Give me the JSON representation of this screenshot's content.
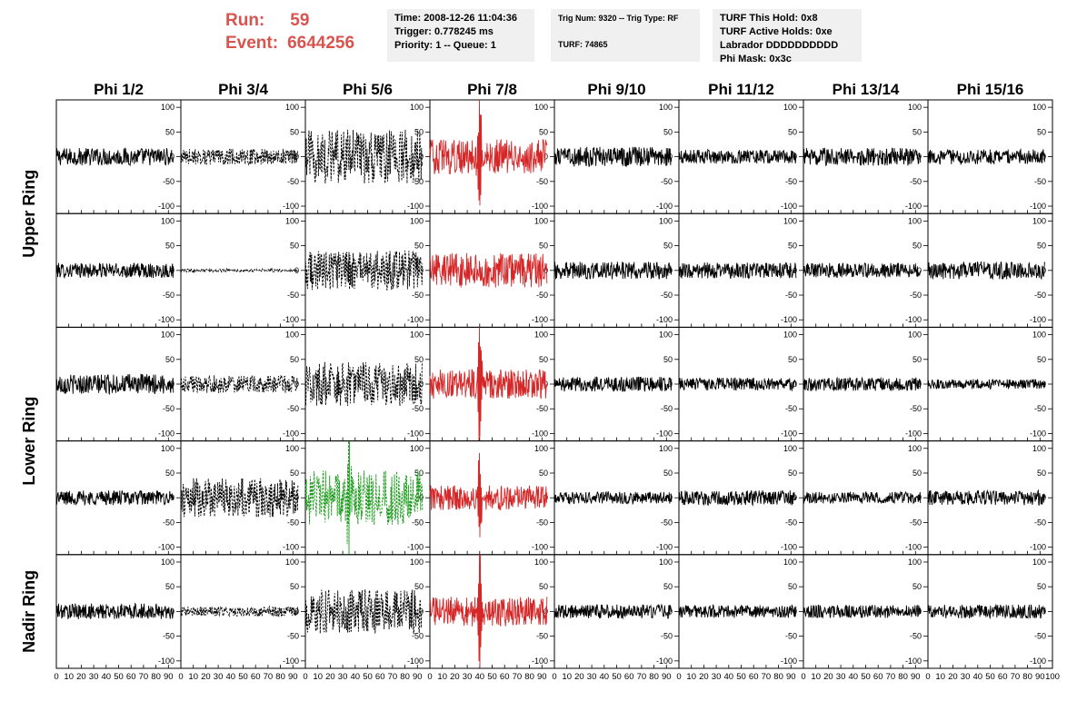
{
  "header": {
    "run_label": "Run:",
    "run_value": "59",
    "event_label": "Event:",
    "event_value": "6644256",
    "time_line": "Time: 2008-12-26 11:04:36",
    "trigger_line": "Trigger: 0.778245 ms",
    "priority_line": "Priority: 1 -- Queue: 1",
    "trig_line": "Trig Num: 9320 -- Trig Type: RF",
    "turf_line": "TURF: 74865",
    "turf_hold_line": "TURF This Hold: 0x8",
    "turf_active_line": "TURF Active Holds: 0xe",
    "labrador_line": "Labrador DDDDDDDDDD",
    "phimask_line": "Phi Mask: 0x3c"
  },
  "colors": {
    "default": "#000000",
    "triggered": "#d62728",
    "highlight": "#1a9a1a",
    "title_red": "#d9534f",
    "info_bg": "#f0f0f0"
  },
  "chart_data": {
    "type": "line",
    "columns": [
      "Phi 1/2",
      "Phi 3/4",
      "Phi 5/6",
      "Phi 7/8",
      "Phi 9/10",
      "Phi 11/12",
      "Phi 13/14",
      "Phi 15/16"
    ],
    "rows": [
      "Upper Ring",
      "Upper Ring",
      "Lower Ring",
      "Lower Ring",
      "Nadir Ring"
    ],
    "row_labels": [
      {
        "label": "Upper Ring",
        "rows": [
          0,
          1
        ]
      },
      {
        "label": "Lower Ring",
        "rows": [
          2,
          3
        ]
      },
      {
        "label": "Nadir Ring",
        "rows": [
          4
        ]
      }
    ],
    "xlim": [
      0,
      100
    ],
    "ylim": [
      -115,
      115
    ],
    "x_ticks": [
      0,
      10,
      20,
      30,
      40,
      50,
      60,
      70,
      80,
      90,
      100
    ],
    "x_tick_labels": [
      "0",
      "10",
      "20",
      "30",
      "40",
      "50",
      "60",
      "70",
      "80",
      "90",
      "100"
    ],
    "x_tick_labels_per_panel": [
      "0",
      "10",
      "20",
      "30",
      "40",
      "50",
      "60",
      "70",
      "80",
      "90"
    ],
    "y_ticks": [
      -100,
      -50,
      0,
      50,
      100
    ],
    "y_tick_labels": [
      "-100",
      "-50",
      "0",
      "50",
      "100"
    ],
    "waveform_x_range": [
      0,
      94
    ],
    "styles": {
      "black": {
        "color": "#000000",
        "dashed": false
      },
      "dashed": {
        "color": "#000000",
        "dashed": true
      },
      "red": {
        "color": "#d62728",
        "dashed": false
      },
      "green": {
        "color": "#1a9a1a",
        "dashed": true
      }
    },
    "panels": [
      [
        {
          "amplitude": 18,
          "style": "black"
        },
        {
          "amplitude": 16,
          "style": "dashed"
        },
        {
          "amplitude": 55,
          "style": "dashed"
        },
        {
          "amplitude": 35,
          "style": "red",
          "pulse_x": 40,
          "pulse_peak": 110
        },
        {
          "amplitude": 20,
          "style": "black"
        },
        {
          "amplitude": 14,
          "style": "black"
        },
        {
          "amplitude": 18,
          "style": "black"
        },
        {
          "amplitude": 15,
          "style": "black"
        }
      ],
      [
        {
          "amplitude": 15,
          "style": "black"
        },
        {
          "amplitude": 3,
          "style": "dashed"
        },
        {
          "amplitude": 40,
          "style": "dashed"
        },
        {
          "amplitude": 35,
          "style": "red"
        },
        {
          "amplitude": 18,
          "style": "black"
        },
        {
          "amplitude": 16,
          "style": "black"
        },
        {
          "amplitude": 15,
          "style": "black"
        },
        {
          "amplitude": 18,
          "style": "black"
        }
      ],
      [
        {
          "amplitude": 20,
          "style": "black"
        },
        {
          "amplitude": 18,
          "style": "dashed"
        },
        {
          "amplitude": 45,
          "style": "dashed"
        },
        {
          "amplitude": 30,
          "style": "red",
          "pulse_x": 40,
          "pulse_peak": 110
        },
        {
          "amplitude": 15,
          "style": "black"
        },
        {
          "amplitude": 13,
          "style": "black"
        },
        {
          "amplitude": 14,
          "style": "black"
        },
        {
          "amplitude": 10,
          "style": "black"
        }
      ],
      [
        {
          "amplitude": 15,
          "style": "black"
        },
        {
          "amplitude": 40,
          "style": "dashed"
        },
        {
          "amplitude": 55,
          "style": "green",
          "pulse_x": 35,
          "pulse_peak": 100
        },
        {
          "amplitude": 25,
          "style": "red",
          "pulse_x": 40,
          "pulse_peak": 80
        },
        {
          "amplitude": 12,
          "style": "black"
        },
        {
          "amplitude": 15,
          "style": "black"
        },
        {
          "amplitude": 12,
          "style": "black"
        },
        {
          "amplitude": 15,
          "style": "black"
        }
      ],
      [
        {
          "amplitude": 16,
          "style": "black"
        },
        {
          "amplitude": 10,
          "style": "dashed"
        },
        {
          "amplitude": 45,
          "style": "dashed"
        },
        {
          "amplitude": 30,
          "style": "red",
          "pulse_x": 40,
          "pulse_peak": 110
        },
        {
          "amplitude": 14,
          "style": "black"
        },
        {
          "amplitude": 13,
          "style": "black"
        },
        {
          "amplitude": 13,
          "style": "black"
        },
        {
          "amplitude": 14,
          "style": "black"
        }
      ]
    ]
  }
}
